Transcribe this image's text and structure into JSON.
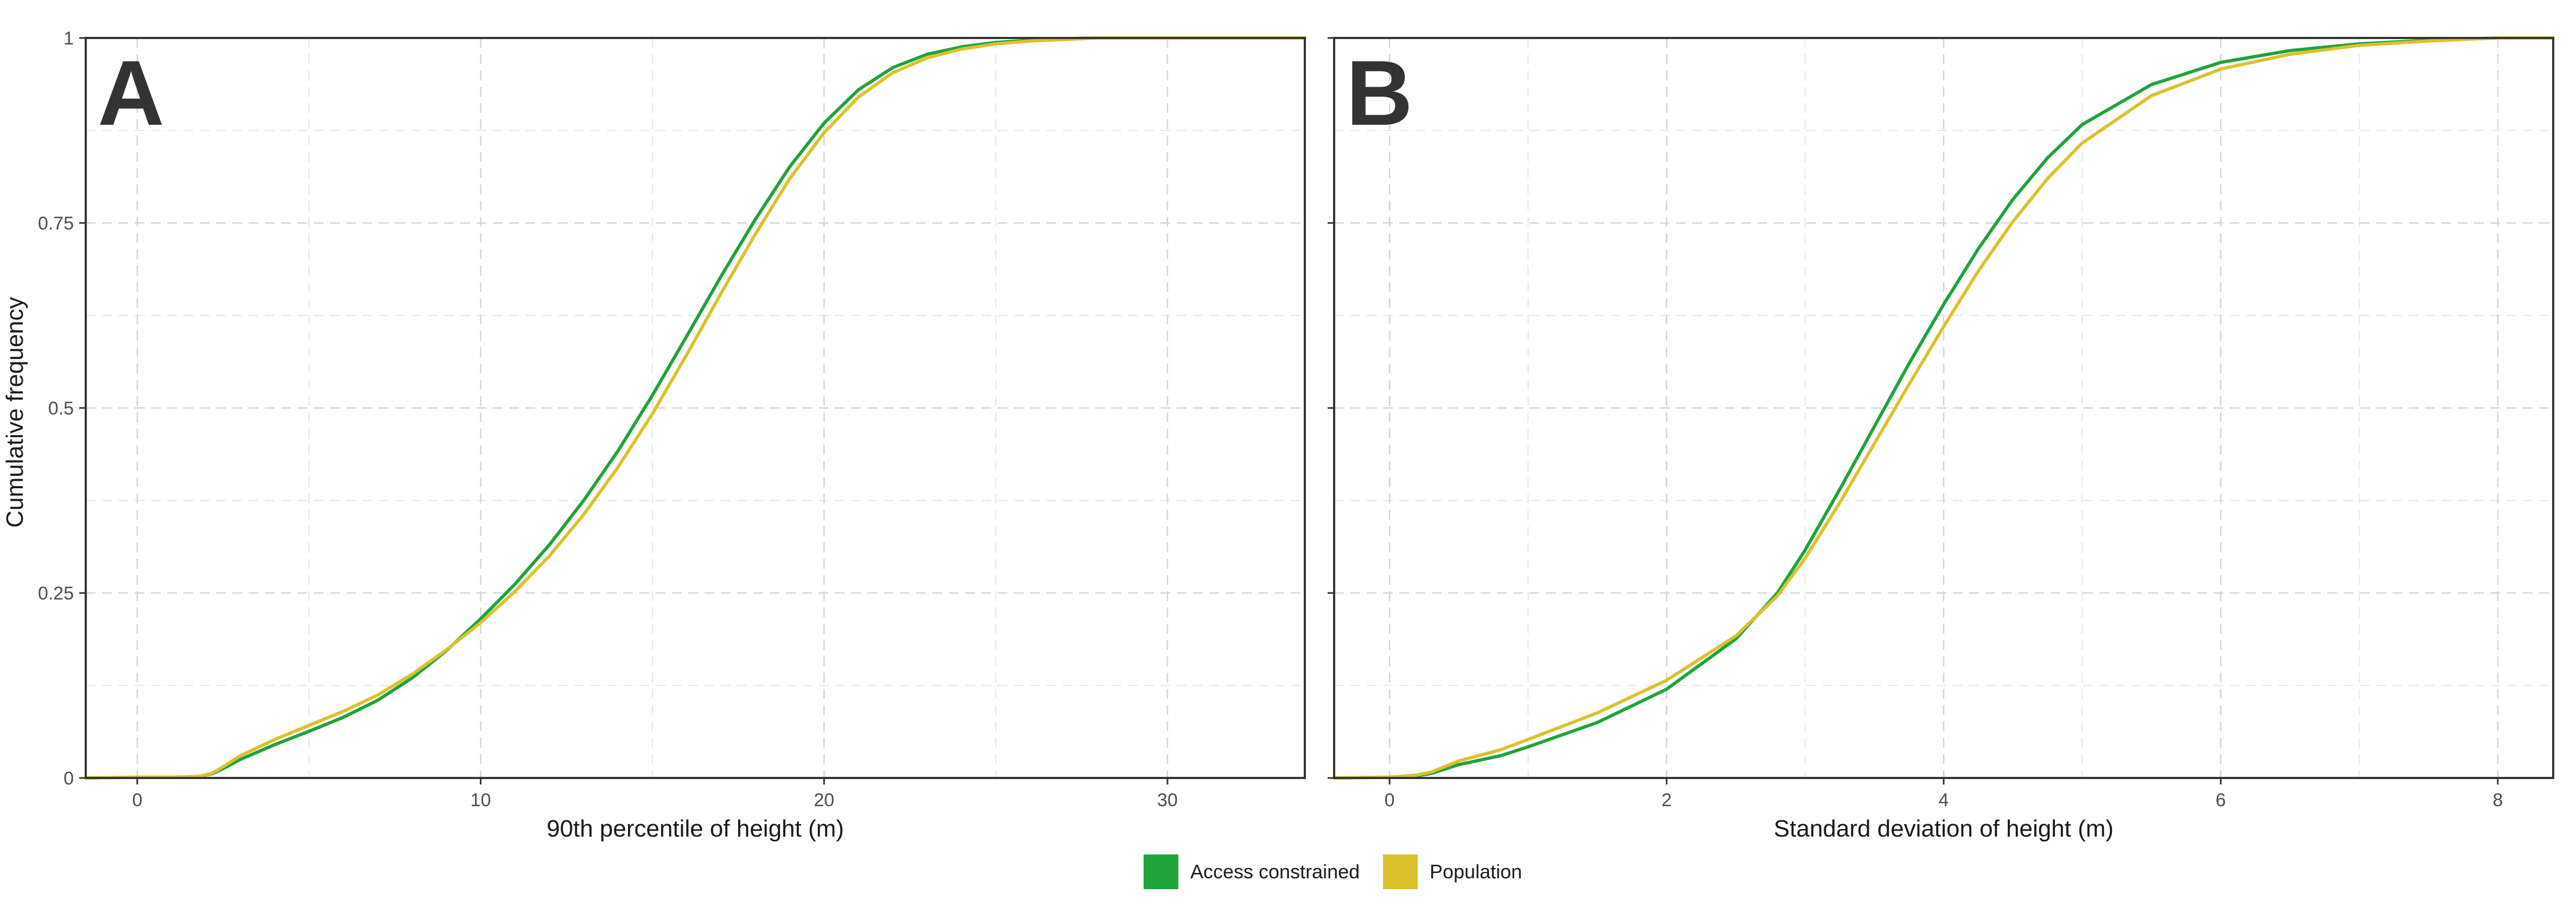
{
  "chart_data": [
    {
      "type": "line",
      "panel_label": "A",
      "xlabel": "90th percentile of height (m)",
      "ylabel": "Cumulative frequency",
      "xlim": [
        -1.5,
        34
      ],
      "ylim": [
        0,
        1
      ],
      "xticks": [
        0,
        10,
        20,
        30
      ],
      "xtick_labels": [
        "0",
        "10",
        "20",
        "30"
      ],
      "yticks": [
        0,
        0.25,
        0.5,
        0.75,
        1
      ],
      "ytick_labels": [
        "0",
        "0.25",
        "0.5",
        "0.75",
        "1"
      ],
      "grid": true,
      "series": [
        {
          "name": "Access constrained",
          "color": "#1fa33a",
          "points": [
            [
              -1.5,
              0
            ],
            [
              0,
              0.001
            ],
            [
              1,
              0.001
            ],
            [
              1.8,
              0.002
            ],
            [
              2.2,
              0.006
            ],
            [
              2.6,
              0.015
            ],
            [
              3,
              0.025
            ],
            [
              4,
              0.045
            ],
            [
              5,
              0.063
            ],
            [
              6,
              0.082
            ],
            [
              7,
              0.105
            ],
            [
              8,
              0.135
            ],
            [
              9,
              0.172
            ],
            [
              10,
              0.215
            ],
            [
              11,
              0.262
            ],
            [
              12,
              0.315
            ],
            [
              13,
              0.375
            ],
            [
              14,
              0.442
            ],
            [
              15,
              0.517
            ],
            [
              16,
              0.597
            ],
            [
              17,
              0.678
            ],
            [
              18,
              0.755
            ],
            [
              19,
              0.826
            ],
            [
              20,
              0.885
            ],
            [
              21,
              0.93
            ],
            [
              22,
              0.96
            ],
            [
              23,
              0.978
            ],
            [
              24,
              0.988
            ],
            [
              25,
              0.994
            ],
            [
              26,
              0.997
            ],
            [
              27,
              0.999
            ],
            [
              28,
              1
            ],
            [
              34,
              1
            ]
          ]
        },
        {
          "name": "Population",
          "color": "#dcc12e",
          "points": [
            [
              -1.5,
              0
            ],
            [
              0,
              0.001
            ],
            [
              1,
              0.001
            ],
            [
              1.8,
              0.002
            ],
            [
              2.2,
              0.007
            ],
            [
              2.6,
              0.018
            ],
            [
              3,
              0.03
            ],
            [
              4,
              0.052
            ],
            [
              5,
              0.071
            ],
            [
              6,
              0.09
            ],
            [
              7,
              0.112
            ],
            [
              8,
              0.14
            ],
            [
              9,
              0.173
            ],
            [
              10,
              0.21
            ],
            [
              11,
              0.252
            ],
            [
              12,
              0.3
            ],
            [
              13,
              0.356
            ],
            [
              14,
              0.42
            ],
            [
              15,
              0.492
            ],
            [
              16,
              0.572
            ],
            [
              17,
              0.655
            ],
            [
              18,
              0.735
            ],
            [
              19,
              0.81
            ],
            [
              20,
              0.872
            ],
            [
              21,
              0.92
            ],
            [
              22,
              0.953
            ],
            [
              23,
              0.973
            ],
            [
              24,
              0.985
            ],
            [
              25,
              0.992
            ],
            [
              26,
              0.996
            ],
            [
              27,
              0.998
            ],
            [
              28,
              1
            ],
            [
              34,
              1
            ]
          ]
        }
      ]
    },
    {
      "type": "line",
      "panel_label": "B",
      "xlabel": "Standard deviation of height (m)",
      "ylabel": "",
      "xlim": [
        -0.4,
        8.4
      ],
      "ylim": [
        0,
        1
      ],
      "xticks": [
        0,
        2,
        4,
        6,
        8
      ],
      "xtick_labels": [
        "0",
        "2",
        "4",
        "6",
        "8"
      ],
      "yticks": [
        0,
        0.25,
        0.5,
        0.75,
        1
      ],
      "grid": true,
      "series": [
        {
          "name": "Access constrained",
          "color": "#1fa33a",
          "points": [
            [
              -0.4,
              0
            ],
            [
              0,
              0.001
            ],
            [
              0.2,
              0.003
            ],
            [
              0.3,
              0.006
            ],
            [
              0.5,
              0.018
            ],
            [
              0.8,
              0.03
            ],
            [
              1,
              0.042
            ],
            [
              1.5,
              0.075
            ],
            [
              2,
              0.12
            ],
            [
              2.5,
              0.188
            ],
            [
              2.8,
              0.25
            ],
            [
              3,
              0.308
            ],
            [
              3.25,
              0.39
            ],
            [
              3.5,
              0.475
            ],
            [
              3.75,
              0.56
            ],
            [
              4,
              0.64
            ],
            [
              4.25,
              0.715
            ],
            [
              4.5,
              0.782
            ],
            [
              4.75,
              0.838
            ],
            [
              5,
              0.883
            ],
            [
              5.5,
              0.937
            ],
            [
              6,
              0.967
            ],
            [
              6.5,
              0.983
            ],
            [
              7,
              0.992
            ],
            [
              7.5,
              0.997
            ],
            [
              8,
              1
            ],
            [
              8.4,
              1
            ]
          ]
        },
        {
          "name": "Population",
          "color": "#dcc12e",
          "points": [
            [
              -0.4,
              0
            ],
            [
              0,
              0.001
            ],
            [
              0.2,
              0.004
            ],
            [
              0.3,
              0.008
            ],
            [
              0.5,
              0.023
            ],
            [
              0.8,
              0.038
            ],
            [
              1,
              0.052
            ],
            [
              1.5,
              0.088
            ],
            [
              2,
              0.132
            ],
            [
              2.5,
              0.192
            ],
            [
              2.8,
              0.246
            ],
            [
              3,
              0.297
            ],
            [
              3.25,
              0.372
            ],
            [
              3.5,
              0.452
            ],
            [
              3.75,
              0.532
            ],
            [
              4,
              0.61
            ],
            [
              4.25,
              0.685
            ],
            [
              4.5,
              0.752
            ],
            [
              4.75,
              0.81
            ],
            [
              5,
              0.858
            ],
            [
              5.5,
              0.922
            ],
            [
              6,
              0.958
            ],
            [
              6.5,
              0.978
            ],
            [
              7,
              0.99
            ],
            [
              7.5,
              0.996
            ],
            [
              8,
              1
            ],
            [
              8.4,
              1
            ]
          ]
        }
      ]
    }
  ],
  "legend": {
    "placement": "bottom-center",
    "items": [
      {
        "label": "Access constrained",
        "color": "#1fa33a"
      },
      {
        "label": "Population",
        "color": "#dcc12e"
      }
    ]
  }
}
